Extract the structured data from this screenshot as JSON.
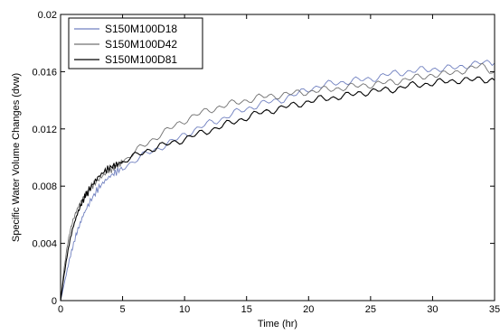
{
  "chart_data": {
    "type": "line",
    "title": "",
    "xlabel": "Time (hr)",
    "ylabel": "Specific Water Volume Changes (dvw)",
    "xlim": [
      0,
      35
    ],
    "ylim": [
      0,
      0.02
    ],
    "xticks": [
      0,
      5,
      10,
      15,
      20,
      25,
      30,
      35
    ],
    "xtick_labels": [
      "0",
      "5",
      "10",
      "15",
      "20",
      "25",
      "30",
      "35"
    ],
    "yticks": [
      0,
      0.004,
      0.008,
      0.012,
      0.016,
      0.02
    ],
    "ytick_labels": [
      "0",
      "0.004",
      "0.008",
      "0.012",
      "0.016",
      "0.02"
    ],
    "grid": false,
    "legend_position": "top-left",
    "series": [
      {
        "name": "S150M100D18",
        "color": "#7080c0",
        "x": [
          0,
          0.25,
          0.5,
          0.75,
          1.0,
          1.25,
          1.5,
          1.75,
          2.0,
          2.5,
          3.0,
          3.5,
          4.0,
          4.5,
          5.0,
          6.0,
          7.0,
          8.0,
          9.0,
          10.0,
          11.0,
          12.0,
          13.0,
          14.0,
          15.0,
          16.0,
          17.0,
          18.0,
          19.0,
          20.0,
          21.0,
          22.0,
          23.0,
          24.0,
          25.0,
          26.0,
          27.0,
          28.0,
          29.0,
          30.0,
          31.0,
          32.0,
          33.0,
          34.0,
          35.0
        ],
        "y": [
          0.0,
          0.001,
          0.002,
          0.003,
          0.0038,
          0.0046,
          0.0052,
          0.0058,
          0.0063,
          0.0071,
          0.0078,
          0.0083,
          0.0087,
          0.009,
          0.0093,
          0.0098,
          0.0103,
          0.0107,
          0.0111,
          0.0116,
          0.012,
          0.0124,
          0.0127,
          0.0131,
          0.0134,
          0.0137,
          0.0139,
          0.0141,
          0.0144,
          0.0148,
          0.015,
          0.0152,
          0.0153,
          0.0154,
          0.0155,
          0.0157,
          0.0159,
          0.016,
          0.0161,
          0.0162,
          0.0162,
          0.0163,
          0.0165,
          0.0166,
          0.0166
        ]
      },
      {
        "name": "S150M100D42",
        "color": "#707070",
        "x": [
          0,
          0.25,
          0.5,
          0.75,
          1.0,
          1.25,
          1.5,
          1.75,
          2.0,
          2.5,
          3.0,
          3.5,
          4.0,
          4.5,
          5.0,
          6.0,
          7.0,
          8.0,
          9.0,
          10.0,
          11.0,
          12.0,
          13.0,
          14.0,
          15.0,
          16.0,
          17.0,
          18.0,
          19.0,
          20.0,
          21.0,
          22.0,
          23.0,
          24.0,
          25.0,
          26.0,
          27.0,
          28.0,
          29.0,
          30.0,
          31.0,
          32.0,
          33.0,
          34.0,
          35.0
        ],
        "y": [
          0.0,
          0.002,
          0.0036,
          0.0048,
          0.0056,
          0.0062,
          0.0067,
          0.0071,
          0.0074,
          0.008,
          0.0084,
          0.0088,
          0.0091,
          0.0094,
          0.0097,
          0.0104,
          0.011,
          0.0116,
          0.0121,
          0.0126,
          0.013,
          0.0133,
          0.0136,
          0.0138,
          0.014,
          0.0142,
          0.0143,
          0.0144,
          0.0145,
          0.0146,
          0.0147,
          0.0148,
          0.0149,
          0.015,
          0.0151,
          0.0152,
          0.0153,
          0.0155,
          0.0156,
          0.0158,
          0.0158,
          0.016,
          0.0162,
          0.0164,
          0.016
        ]
      },
      {
        "name": "S150M100D81",
        "color": "#000000",
        "x": [
          0,
          0.25,
          0.5,
          0.75,
          1.0,
          1.25,
          1.5,
          1.75,
          2.0,
          2.5,
          3.0,
          3.5,
          4.0,
          4.5,
          5.0,
          6.0,
          7.0,
          8.0,
          9.0,
          10.0,
          11.0,
          12.0,
          13.0,
          14.0,
          15.0,
          16.0,
          17.0,
          18.0,
          19.0,
          20.0,
          21.0,
          22.0,
          23.0,
          24.0,
          25.0,
          26.0,
          27.0,
          28.0,
          29.0,
          30.0,
          31.0,
          32.0,
          33.0,
          34.0,
          35.0
        ],
        "y": [
          0.0,
          0.0016,
          0.003,
          0.0042,
          0.0051,
          0.0058,
          0.0064,
          0.0069,
          0.0073,
          0.008,
          0.0086,
          0.009,
          0.0093,
          0.0095,
          0.0097,
          0.0101,
          0.0105,
          0.0108,
          0.011,
          0.0113,
          0.0116,
          0.0119,
          0.0122,
          0.0125,
          0.0128,
          0.0131,
          0.0133,
          0.0135,
          0.0137,
          0.0139,
          0.0141,
          0.0142,
          0.0143,
          0.0145,
          0.0146,
          0.0147,
          0.0148,
          0.015,
          0.0151,
          0.0152,
          0.0153,
          0.0154,
          0.0154,
          0.0155,
          0.0154
        ]
      }
    ]
  }
}
